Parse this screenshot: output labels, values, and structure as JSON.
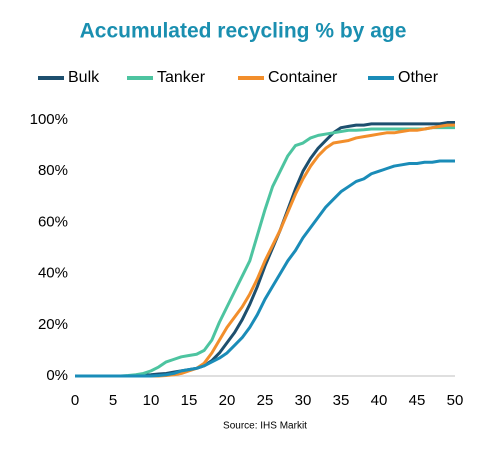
{
  "chart_data": {
    "type": "line",
    "title": "Accumulated recycling % by age",
    "source": "Source: IHS Markit",
    "x": [
      0,
      1,
      2,
      3,
      4,
      5,
      6,
      7,
      8,
      9,
      10,
      11,
      12,
      13,
      14,
      15,
      16,
      17,
      18,
      19,
      20,
      21,
      22,
      23,
      24,
      25,
      26,
      27,
      28,
      29,
      30,
      31,
      32,
      33,
      34,
      35,
      36,
      37,
      38,
      39,
      40,
      41,
      42,
      43,
      44,
      45,
      46,
      47,
      48,
      49,
      50
    ],
    "xlim": [
      0,
      50
    ],
    "xticks": [
      0,
      5,
      10,
      15,
      20,
      25,
      30,
      35,
      40,
      45,
      50
    ],
    "ylim": [
      0,
      100
    ],
    "yticks": [
      {
        "value": 0,
        "label": "0%"
      },
      {
        "value": 20,
        "label": "20%"
      },
      {
        "value": 40,
        "label": "40%"
      },
      {
        "value": 60,
        "label": "60%"
      },
      {
        "value": 80,
        "label": "80%"
      },
      {
        "value": 100,
        "label": "100%"
      }
    ],
    "grid": false,
    "legend": "top",
    "series": [
      {
        "name": "Bulk",
        "color": "#1d4f6e",
        "values": [
          0,
          0,
          0,
          0,
          0,
          0,
          0,
          0,
          0,
          0.3,
          0.5,
          0.8,
          1,
          1.5,
          2,
          2.5,
          3,
          4,
          6,
          9,
          13,
          17,
          22,
          28,
          35,
          43,
          50,
          57,
          65,
          73,
          80,
          85,
          89,
          92,
          95,
          97,
          97.5,
          98,
          98,
          98.5,
          98.5,
          98.5,
          98.5,
          98.5,
          98.5,
          98.5,
          98.5,
          98.5,
          98.5,
          99,
          99
        ]
      },
      {
        "name": "Tanker",
        "color": "#4dc4a0",
        "values": [
          0,
          0,
          0,
          0,
          0,
          0,
          0,
          0.2,
          0.5,
          1,
          2,
          3.5,
          5.5,
          6.5,
          7.5,
          8,
          8.5,
          10,
          14,
          21,
          27,
          33,
          39,
          45,
          55,
          65,
          74,
          80,
          86,
          90,
          91,
          93,
          94,
          94.5,
          95,
          95.5,
          96,
          96,
          96.2,
          96.5,
          96.5,
          96.5,
          96.5,
          96.5,
          96.5,
          96.5,
          96.5,
          97,
          97,
          97,
          97
        ]
      },
      {
        "name": "Container",
        "color": "#f28e2b",
        "values": [
          0,
          0,
          0,
          0,
          0,
          0,
          0,
          0,
          0,
          0,
          0,
          0,
          0.2,
          0.5,
          1,
          2,
          3,
          5,
          9,
          14,
          19,
          23,
          27,
          32,
          38,
          45,
          51,
          57,
          64,
          71,
          77,
          82,
          86,
          89,
          91,
          91.5,
          92,
          93,
          93.5,
          94,
          94.5,
          95,
          95,
          95.5,
          96,
          96,
          96.5,
          97,
          97.5,
          98,
          98
        ]
      },
      {
        "name": "Other",
        "color": "#1a8cb8",
        "values": [
          0,
          0,
          0,
          0,
          0,
          0,
          0,
          0,
          0,
          0,
          0,
          0.2,
          0.5,
          1,
          2,
          2.5,
          3,
          4,
          5.5,
          7,
          9,
          12,
          15,
          19,
          24,
          30,
          35,
          40,
          45,
          49,
          54,
          58,
          62,
          66,
          69,
          72,
          74,
          76,
          77,
          79,
          80,
          81,
          82,
          82.5,
          83,
          83,
          83.5,
          83.5,
          84,
          84,
          84
        ]
      }
    ]
  }
}
